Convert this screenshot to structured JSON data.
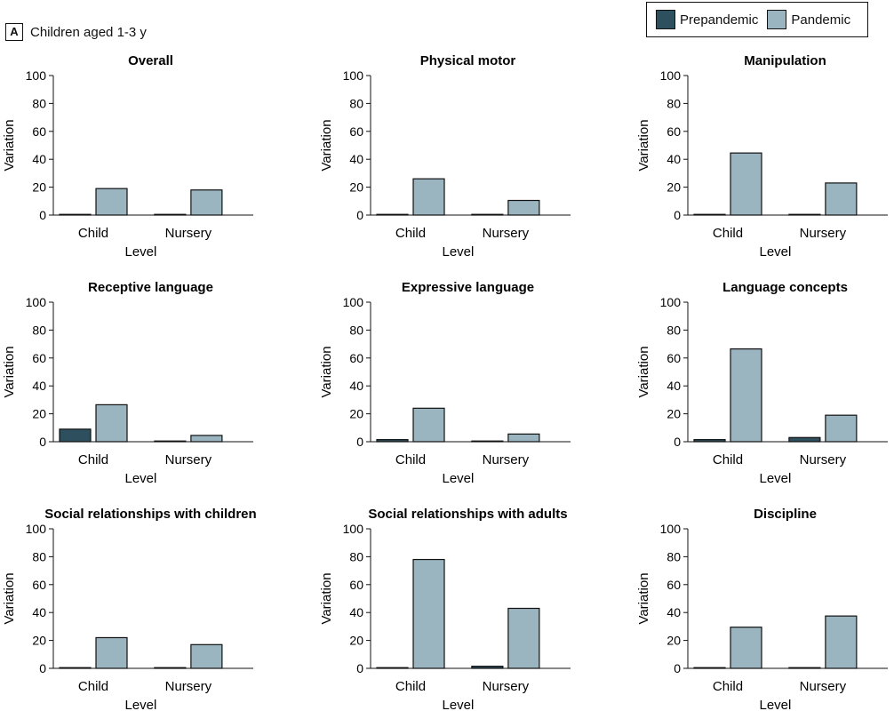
{
  "panel": {
    "letter": "A",
    "caption": "Children aged 1-3 y"
  },
  "legend": [
    {
      "label": "Prepandemic",
      "color": "#2d4f5e"
    },
    {
      "label": "Pandemic",
      "color": "#9ab4c0"
    }
  ],
  "chart_data": [
    {
      "type": "bar",
      "title": "Overall",
      "xlabel": "Level",
      "ylabel": "Variation",
      "ylim": [
        0,
        100
      ],
      "yticks": [
        0,
        20,
        40,
        60,
        80,
        100
      ],
      "categories": [
        "Child",
        "Nursery"
      ],
      "series": [
        {
          "name": "Prepandemic",
          "values": [
            0.5,
            0.5
          ]
        },
        {
          "name": "Pandemic",
          "values": [
            19,
            18
          ]
        }
      ]
    },
    {
      "type": "bar",
      "title": "Physical motor",
      "xlabel": "Level",
      "ylabel": "Variation",
      "ylim": [
        0,
        100
      ],
      "yticks": [
        0,
        20,
        40,
        60,
        80,
        100
      ],
      "categories": [
        "Child",
        "Nursery"
      ],
      "series": [
        {
          "name": "Prepandemic",
          "values": [
            0.5,
            0.5
          ]
        },
        {
          "name": "Pandemic",
          "values": [
            26,
            10.5
          ]
        }
      ]
    },
    {
      "type": "bar",
      "title": "Manipulation",
      "xlabel": "Level",
      "ylabel": "Variation",
      "ylim": [
        0,
        100
      ],
      "yticks": [
        0,
        20,
        40,
        60,
        80,
        100
      ],
      "categories": [
        "Child",
        "Nursery"
      ],
      "series": [
        {
          "name": "Prepandemic",
          "values": [
            0,
            0.5
          ]
        },
        {
          "name": "Pandemic",
          "values": [
            44.5,
            23
          ]
        }
      ]
    },
    {
      "type": "bar",
      "title": "Receptive language",
      "xlabel": "Level",
      "ylabel": "Variation",
      "ylim": [
        0,
        100
      ],
      "yticks": [
        0,
        20,
        40,
        60,
        80,
        100
      ],
      "categories": [
        "Child",
        "Nursery"
      ],
      "series": [
        {
          "name": "Prepandemic",
          "values": [
            9,
            0.5
          ]
        },
        {
          "name": "Pandemic",
          "values": [
            26.5,
            4.5
          ]
        }
      ]
    },
    {
      "type": "bar",
      "title": "Expressive language",
      "xlabel": "Level",
      "ylabel": "Variation",
      "ylim": [
        0,
        100
      ],
      "yticks": [
        0,
        20,
        40,
        60,
        80,
        100
      ],
      "categories": [
        "Child",
        "Nursery"
      ],
      "series": [
        {
          "name": "Prepandemic",
          "values": [
            1.5,
            0.5
          ]
        },
        {
          "name": "Pandemic",
          "values": [
            24,
            5.5
          ]
        }
      ]
    },
    {
      "type": "bar",
      "title": "Language concepts",
      "xlabel": "Level",
      "ylabel": "Variation",
      "ylim": [
        0,
        100
      ],
      "yticks": [
        0,
        20,
        40,
        60,
        80,
        100
      ],
      "categories": [
        "Child",
        "Nursery"
      ],
      "series": [
        {
          "name": "Prepandemic",
          "values": [
            1.5,
            3
          ]
        },
        {
          "name": "Pandemic",
          "values": [
            66.5,
            19
          ]
        }
      ]
    },
    {
      "type": "bar",
      "title": "Social relationships with children",
      "xlabel": "Level",
      "ylabel": "Variation",
      "ylim": [
        0,
        100
      ],
      "yticks": [
        0,
        20,
        40,
        60,
        80,
        100
      ],
      "categories": [
        "Child",
        "Nursery"
      ],
      "series": [
        {
          "name": "Prepandemic",
          "values": [
            0.5,
            0.5
          ]
        },
        {
          "name": "Pandemic",
          "values": [
            22,
            17
          ]
        }
      ]
    },
    {
      "type": "bar",
      "title": "Social relationships with adults",
      "xlabel": "Level",
      "ylabel": "Variation",
      "ylim": [
        0,
        100
      ],
      "yticks": [
        0,
        20,
        40,
        60,
        80,
        100
      ],
      "categories": [
        "Child",
        "Nursery"
      ],
      "series": [
        {
          "name": "Prepandemic",
          "values": [
            0.5,
            1.5
          ]
        },
        {
          "name": "Pandemic",
          "values": [
            78,
            43
          ]
        }
      ]
    },
    {
      "type": "bar",
      "title": "Discipline",
      "xlabel": "Level",
      "ylabel": "Variation",
      "ylim": [
        0,
        100
      ],
      "yticks": [
        0,
        20,
        40,
        60,
        80,
        100
      ],
      "categories": [
        "Child",
        "Nursery"
      ],
      "series": [
        {
          "name": "Prepandemic",
          "values": [
            0.5,
            0.5
          ]
        },
        {
          "name": "Pandemic",
          "values": [
            29.5,
            37.5
          ]
        }
      ]
    }
  ]
}
